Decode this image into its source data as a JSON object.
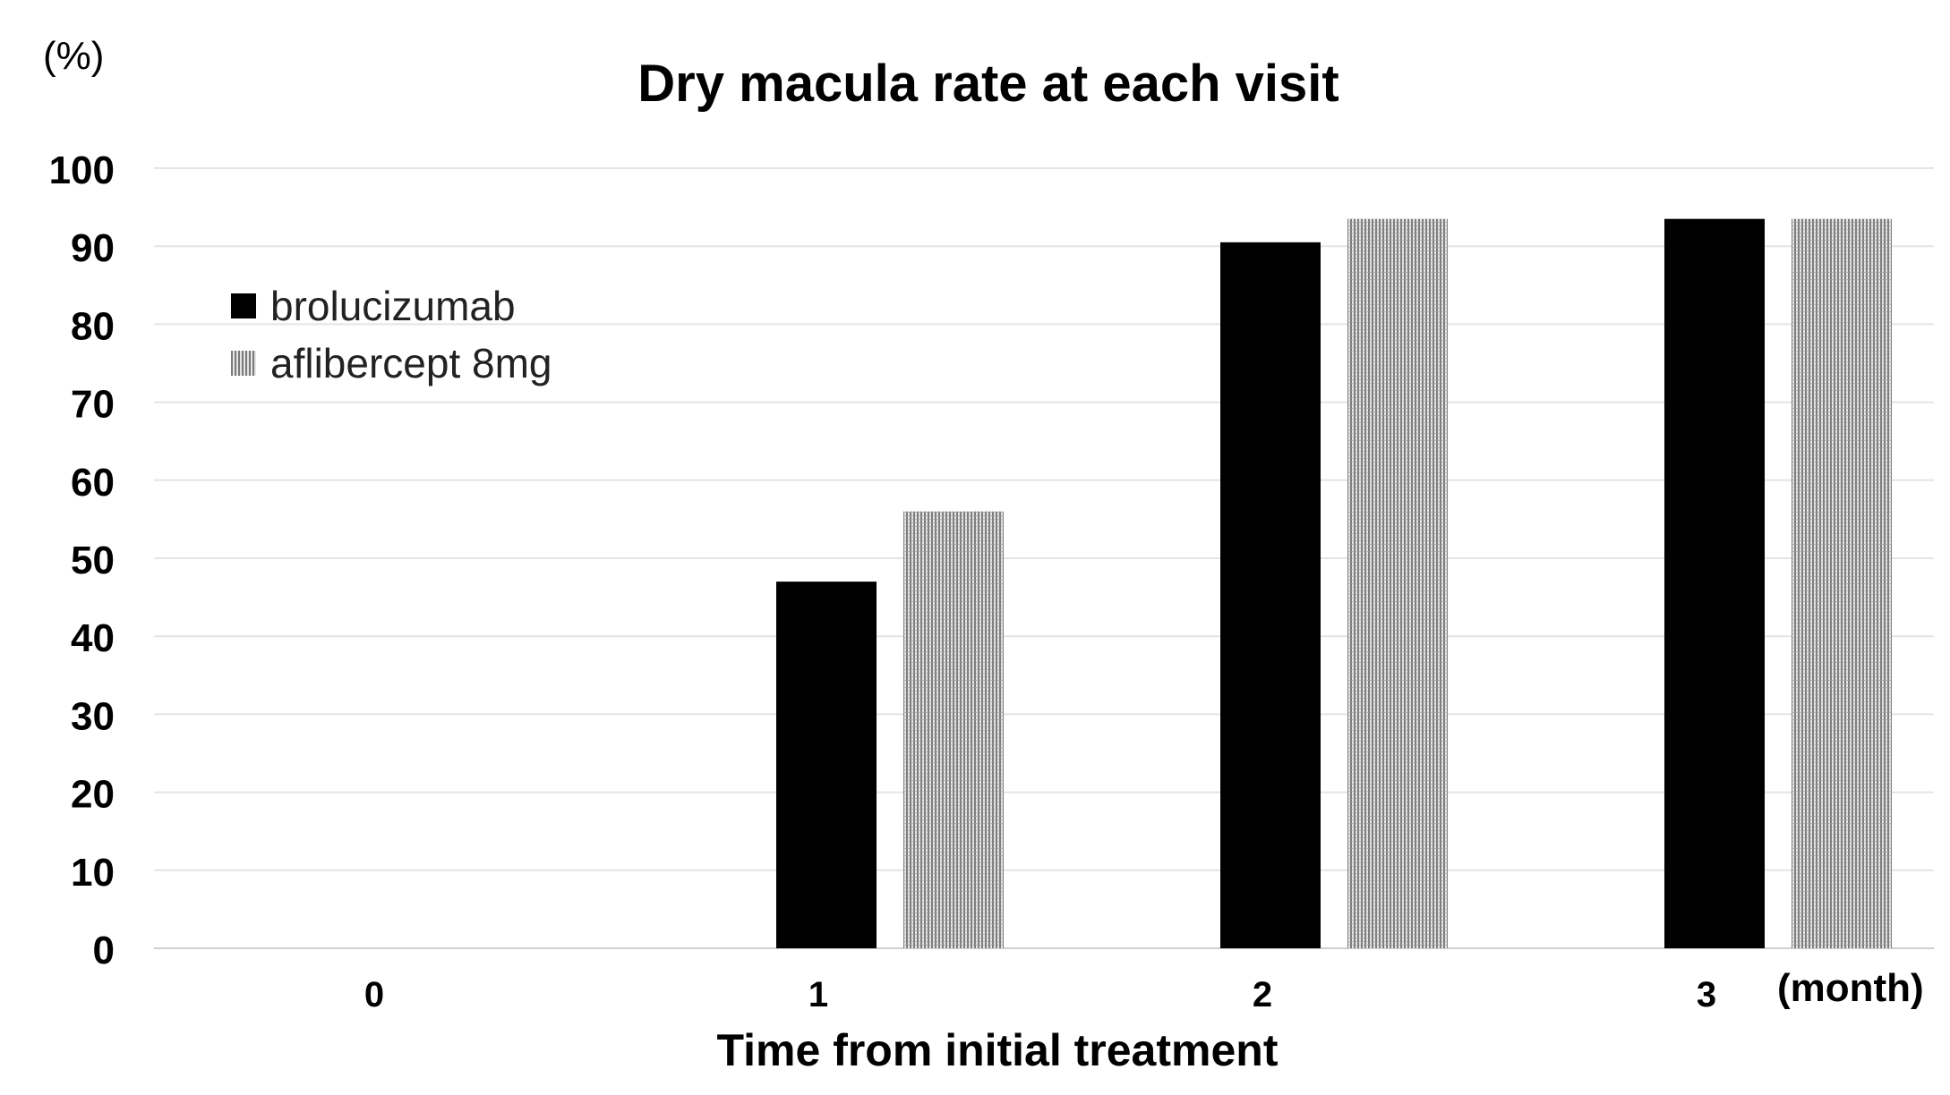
{
  "chart_data": {
    "type": "bar",
    "title": "Dry macula  rate at each visit",
    "y_unit_label": "(%)",
    "xlabel": "Time from initial treatment",
    "x_unit_label": "(month)",
    "ylabel": "",
    "ylim": [
      0,
      100
    ],
    "y_ticks": [
      0,
      10,
      20,
      30,
      40,
      50,
      60,
      70,
      80,
      90,
      100
    ],
    "categories": [
      "0",
      "1",
      "2",
      "3"
    ],
    "series": [
      {
        "name": "brolucizumab",
        "values": [
          0,
          47,
          90.5,
          93.5
        ],
        "color": "#000000",
        "pattern": "solid"
      },
      {
        "name": "aflibercept 8mg",
        "values": [
          0,
          56,
          93.5,
          93.5
        ],
        "color": "#9a9a9a",
        "pattern": "dotted"
      }
    ],
    "grid": true,
    "legend_position": "top-left"
  }
}
